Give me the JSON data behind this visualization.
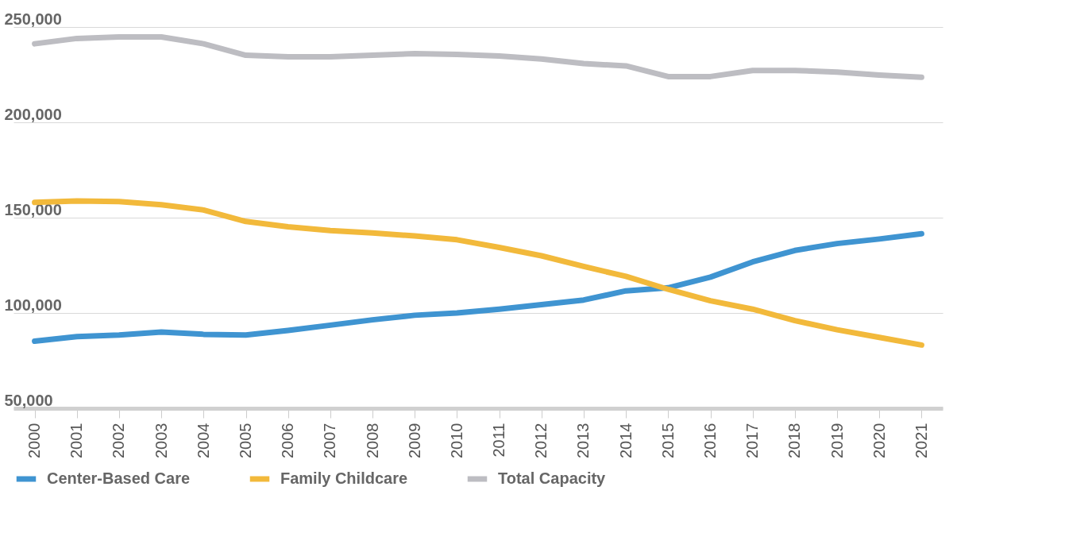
{
  "chart_data": {
    "type": "line",
    "categories": [
      "2000",
      "2001",
      "2002",
      "2003",
      "2004",
      "2005",
      "2006",
      "2007",
      "2008",
      "2009",
      "2010",
      "2011",
      "2012",
      "2013",
      "2014",
      "2015",
      "2016",
      "2017",
      "2018",
      "2019",
      "2020",
      "2021"
    ],
    "series": [
      {
        "name": "Center-Based Care",
        "color": "#3f94d1",
        "values": [
          85200,
          87600,
          88400,
          90000,
          88800,
          88400,
          90800,
          93600,
          96400,
          98800,
          100000,
          102000,
          104400,
          106800,
          111600,
          113200,
          118800,
          126800,
          132800,
          136400,
          138800,
          141600
        ]
      },
      {
        "name": "Family Childcare",
        "color": "#f2b93b",
        "values": [
          158000,
          158800,
          158400,
          156800,
          154000,
          148000,
          145200,
          143200,
          142000,
          140400,
          138400,
          134400,
          130000,
          124400,
          119200,
          112400,
          106400,
          102000,
          96000,
          91200,
          87200,
          83200
        ]
      },
      {
        "name": "Total Capacity",
        "color": "#bdbdc2",
        "values": [
          241200,
          244000,
          244800,
          244800,
          241200,
          235200,
          234400,
          234400,
          235200,
          236000,
          235600,
          234800,
          233200,
          230800,
          229600,
          224000,
          224000,
          227200,
          227200,
          226400,
          224800,
          223600
        ]
      }
    ],
    "ylim": [
      50000,
      250000
    ],
    "yticks": [
      {
        "value": 50000,
        "label": "50,000"
      },
      {
        "value": 100000,
        "label": "100,000"
      },
      {
        "value": 150000,
        "label": "150,000"
      },
      {
        "value": 200000,
        "label": "200,000"
      },
      {
        "value": 250000,
        "label": "250,000"
      }
    ],
    "grid": "y",
    "legend": "bottom",
    "marker": "none",
    "line_style": "solid"
  }
}
